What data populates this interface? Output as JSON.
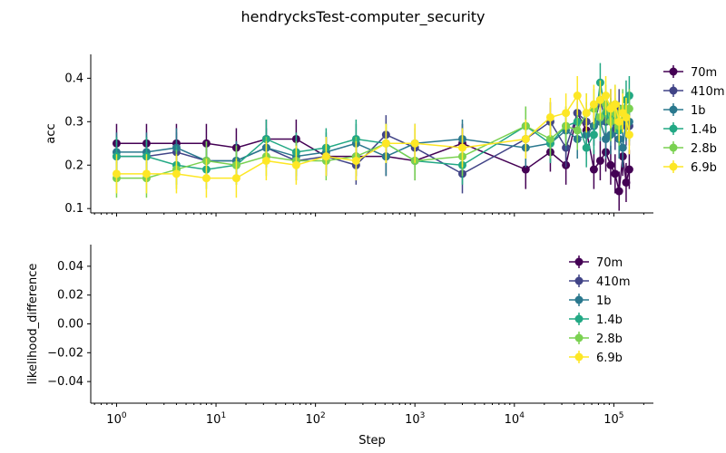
{
  "figure": {
    "title": "hendrycksTest-computer_security"
  },
  "chart_data": [
    {
      "type": "line",
      "xscale": "log",
      "xlabel": "",
      "ylabel": "acc",
      "xlim": [
        0.55,
        250000
      ],
      "ylim": [
        0.09,
        0.455
      ],
      "yticks": [
        0.1,
        0.2,
        0.3,
        0.4
      ],
      "ytick_labels": [
        "0.1",
        "0.2",
        "0.3",
        "0.4"
      ],
      "error_bars": true,
      "legend_position": "right",
      "series": [
        {
          "name": "70m",
          "color": "#440154",
          "x": [
            1,
            2,
            4,
            8,
            16,
            32,
            64,
            128,
            256,
            512,
            1000,
            3000,
            13000,
            23000,
            33000,
            43000,
            53000,
            63000,
            73000,
            83000,
            93000,
            103000,
            113000,
            123000,
            133000,
            143000
          ],
          "y": [
            0.25,
            0.25,
            0.25,
            0.25,
            0.24,
            0.26,
            0.26,
            0.22,
            0.22,
            0.22,
            0.21,
            0.25,
            0.19,
            0.23,
            0.2,
            0.32,
            0.28,
            0.19,
            0.21,
            0.23,
            0.2,
            0.18,
            0.14,
            0.22,
            0.16,
            0.19
          ]
        },
        {
          "name": "410m",
          "color": "#414487",
          "x": [
            1,
            2,
            4,
            8,
            16,
            32,
            64,
            128,
            256,
            512,
            1000,
            3000,
            13000,
            23000,
            33000,
            43000,
            53000,
            63000,
            73000,
            83000,
            93000,
            103000,
            113000,
            123000,
            133000,
            143000
          ],
          "y": [
            0.22,
            0.22,
            0.23,
            0.21,
            0.21,
            0.24,
            0.21,
            0.22,
            0.2,
            0.27,
            0.24,
            0.18,
            0.26,
            0.3,
            0.24,
            0.32,
            0.3,
            0.29,
            0.35,
            0.3,
            0.33,
            0.28,
            0.33,
            0.3,
            0.29,
            0.29
          ]
        },
        {
          "name": "1b",
          "color": "#2a788e",
          "x": [
            1,
            2,
            4,
            8,
            16,
            32,
            64,
            128,
            256,
            512,
            1000,
            3000,
            13000,
            23000,
            33000,
            43000,
            53000,
            63000,
            73000,
            83000,
            93000,
            103000,
            113000,
            123000,
            133000,
            143000
          ],
          "y": [
            0.23,
            0.23,
            0.24,
            0.21,
            0.21,
            0.24,
            0.22,
            0.23,
            0.25,
            0.22,
            0.25,
            0.26,
            0.24,
            0.25,
            0.28,
            0.26,
            0.27,
            0.29,
            0.3,
            0.26,
            0.27,
            0.31,
            0.26,
            0.24,
            0.3,
            0.3
          ]
        },
        {
          "name": "1.4b",
          "color": "#22a884",
          "x": [
            1,
            2,
            4,
            8,
            16,
            32,
            64,
            128,
            256,
            512,
            1000,
            3000,
            13000,
            23000,
            33000,
            43000,
            53000,
            63000,
            73000,
            83000,
            93000,
            103000,
            113000,
            123000,
            133000,
            143000
          ],
          "y": [
            0.22,
            0.22,
            0.2,
            0.19,
            0.2,
            0.26,
            0.23,
            0.24,
            0.26,
            0.25,
            0.21,
            0.2,
            0.29,
            0.25,
            0.29,
            0.3,
            0.24,
            0.27,
            0.39,
            0.32,
            0.31,
            0.34,
            0.28,
            0.32,
            0.35,
            0.36
          ]
        },
        {
          "name": "2.8b",
          "color": "#7ad151",
          "x": [
            1,
            2,
            4,
            8,
            16,
            32,
            64,
            128,
            256,
            512,
            1000,
            3000,
            13000,
            23000,
            33000,
            43000,
            53000,
            63000,
            73000,
            83000,
            93000,
            103000,
            113000,
            123000,
            133000,
            143000
          ],
          "y": [
            0.17,
            0.17,
            0.19,
            0.21,
            0.2,
            0.22,
            0.21,
            0.21,
            0.22,
            0.25,
            0.21,
            0.22,
            0.29,
            0.26,
            0.29,
            0.28,
            0.32,
            0.33,
            0.31,
            0.34,
            0.3,
            0.32,
            0.29,
            0.33,
            0.31,
            0.33
          ]
        },
        {
          "name": "6.9b",
          "color": "#fde725",
          "x": [
            1,
            2,
            4,
            8,
            16,
            32,
            64,
            128,
            256,
            512,
            1000,
            3000,
            13000,
            23000,
            33000,
            43000,
            53000,
            63000,
            73000,
            83000,
            93000,
            103000,
            113000,
            123000,
            133000,
            143000
          ],
          "y": [
            0.18,
            0.18,
            0.18,
            0.17,
            0.17,
            0.21,
            0.2,
            0.22,
            0.21,
            0.25,
            0.25,
            0.24,
            0.26,
            0.31,
            0.32,
            0.36,
            0.32,
            0.34,
            0.35,
            0.36,
            0.33,
            0.34,
            0.3,
            0.32,
            0.31,
            0.27
          ]
        }
      ]
    },
    {
      "type": "line",
      "xscale": "log",
      "xlabel": "Step",
      "ylabel": "likelihood_difference",
      "xlim": [
        0.55,
        250000
      ],
      "ylim": [
        -0.055,
        0.055
      ],
      "yticks": [
        -0.04,
        -0.02,
        0.0,
        0.02,
        0.04
      ],
      "ytick_labels": [
        "−0.04",
        "−0.02",
        "0.00",
        "0.02",
        "0.04"
      ],
      "xticks": [
        1,
        10,
        100,
        1000,
        10000,
        100000
      ],
      "xtick_labels": [
        {
          "base": "10",
          "exp": "0"
        },
        {
          "base": "10",
          "exp": "1"
        },
        {
          "base": "10",
          "exp": "2"
        },
        {
          "base": "10",
          "exp": "3"
        },
        {
          "base": "10",
          "exp": "4"
        },
        {
          "base": "10",
          "exp": "5"
        }
      ],
      "legend_position": "upper right",
      "series": [
        {
          "name": "70m",
          "color": "#440154",
          "x": [],
          "y": []
        },
        {
          "name": "410m",
          "color": "#414487",
          "x": [],
          "y": []
        },
        {
          "name": "1b",
          "color": "#2a788e",
          "x": [],
          "y": []
        },
        {
          "name": "1.4b",
          "color": "#22a884",
          "x": [],
          "y": []
        },
        {
          "name": "2.8b",
          "color": "#7ad151",
          "x": [],
          "y": []
        },
        {
          "name": "6.9b",
          "color": "#fde725",
          "x": [],
          "y": []
        }
      ]
    }
  ]
}
